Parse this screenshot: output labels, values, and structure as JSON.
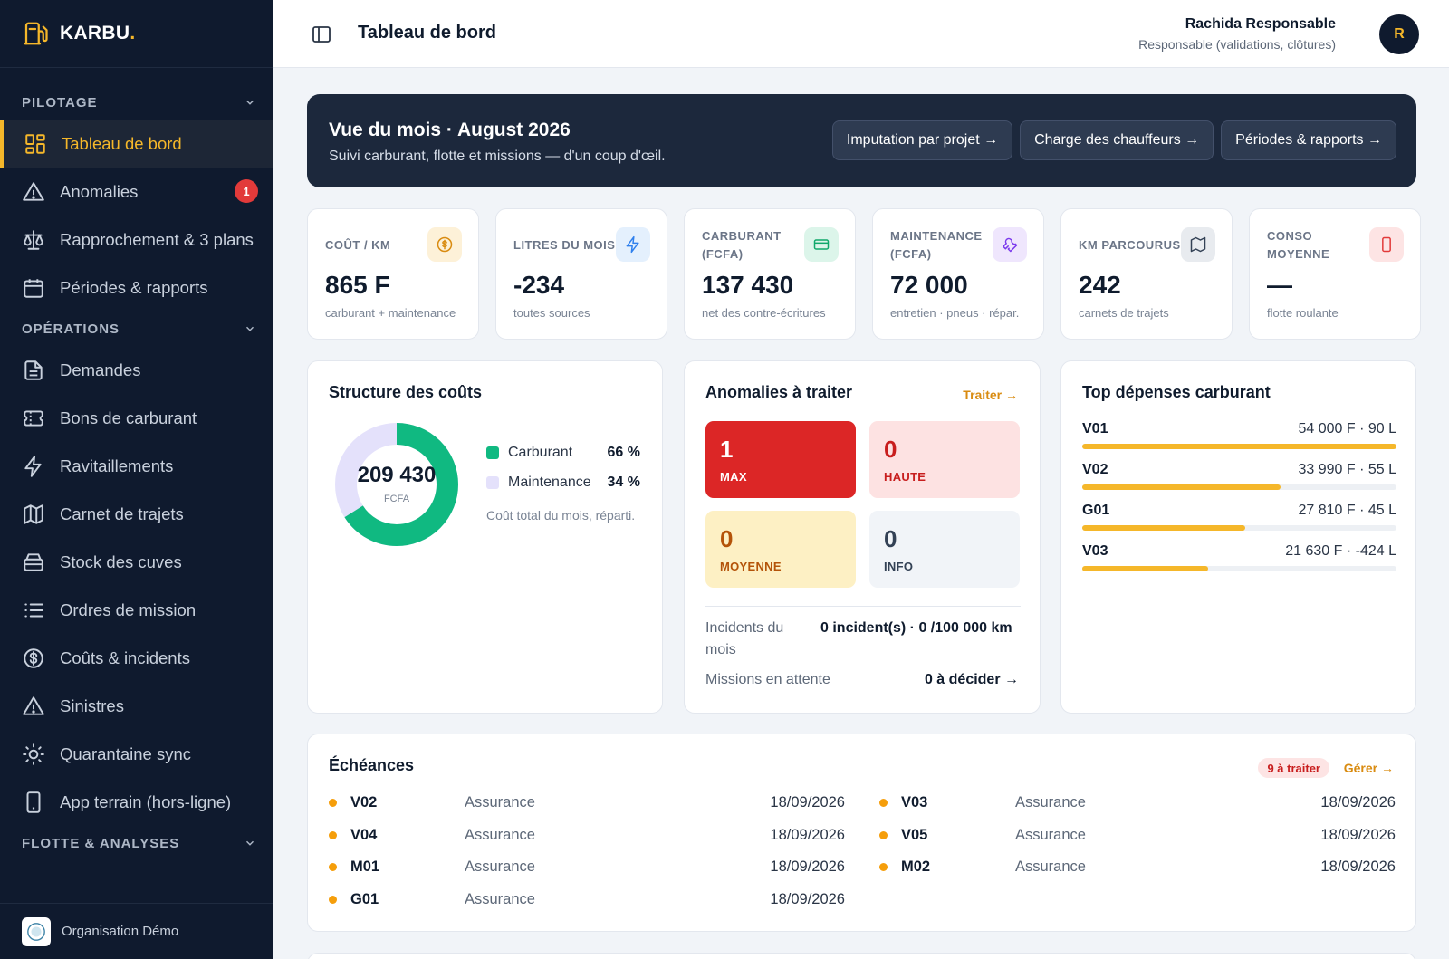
{
  "brand": {
    "name": "KARBU",
    "dot": "."
  },
  "sidebar": {
    "sections": [
      {
        "label": "PILOTAGE"
      },
      {
        "label": "OPÉRATIONS"
      },
      {
        "label": "FLOTTE & ANALYSES"
      }
    ],
    "pilotage": [
      {
        "label": "Tableau de bord",
        "icon": "dashboard-icon",
        "active": true
      },
      {
        "label": "Anomalies",
        "icon": "warning-icon",
        "badge": "1"
      },
      {
        "label": "Rapprochement & 3 plans",
        "icon": "scale-icon"
      },
      {
        "label": "Périodes & rapports",
        "icon": "calendar-icon"
      }
    ],
    "operations": [
      {
        "label": "Demandes",
        "icon": "document-icon"
      },
      {
        "label": "Bons de carburant",
        "icon": "ticket-icon"
      },
      {
        "label": "Ravitaillements",
        "icon": "bolt-icon"
      },
      {
        "label": "Carnet de trajets",
        "icon": "map-icon"
      },
      {
        "label": "Stock des cuves",
        "icon": "tank-icon"
      },
      {
        "label": "Ordres de mission",
        "icon": "list-icon"
      },
      {
        "label": "Coûts & incidents",
        "icon": "dollar-icon"
      },
      {
        "label": "Sinistres",
        "icon": "warning-icon"
      },
      {
        "label": "Quarantaine sync",
        "icon": "sun-icon"
      },
      {
        "label": "App terrain (hors-ligne)",
        "icon": "phone-icon"
      }
    ],
    "org": "Organisation Démo"
  },
  "header": {
    "title": "Tableau de bord",
    "user_name": "Rachida Responsable",
    "user_role": "Responsable (validations, clôtures)",
    "avatar": "R"
  },
  "banner": {
    "title": "Vue du mois · August 2026",
    "subtitle": "Suivi carburant, flotte et missions — d'un coup d'œil.",
    "buttons": [
      "Imputation par projet →",
      "Charge des chauffeurs →",
      "Périodes & rapports →"
    ]
  },
  "kpis": [
    {
      "label": "COÛT / KM",
      "value": "865 F",
      "sub": "carburant + maintenance",
      "icon": "coin-icon",
      "color": "#d98b10",
      "bg": "#fdf1d8"
    },
    {
      "label": "LITRES DU MOIS",
      "value": "-234",
      "sub": "toutes sources",
      "icon": "bolt-icon",
      "color": "#2f80ed",
      "bg": "#e4f0fd"
    },
    {
      "label": "CARBURANT (FCFA)",
      "value": "137 430",
      "sub": "net des contre-écritures",
      "icon": "card-icon",
      "color": "#10a86b",
      "bg": "#dcf5ea"
    },
    {
      "label": "MAINTENANCE (FCFA)",
      "value": "72 000",
      "sub": "entretien · pneus · répar.",
      "icon": "wrench-icon",
      "color": "#7c3aed",
      "bg": "#efe6fd"
    },
    {
      "label": "KM PARCOURUS",
      "value": "242",
      "sub": "carnets de trajets",
      "icon": "map-icon",
      "color": "#334155",
      "bg": "#e8ebef"
    },
    {
      "label": "CONSO MOYENNE",
      "value": "—",
      "sub": "flotte roulante",
      "icon": "phone-icon",
      "color": "#e23a3a",
      "bg": "#fde4e4"
    }
  ],
  "costs": {
    "title": "Structure des coûts",
    "total": "209 430",
    "unit": "FCFA",
    "note": "Coût total du mois, réparti.",
    "legend": [
      {
        "label": "Carburant",
        "pct": "66 %",
        "color": "#10b981"
      },
      {
        "label": "Maintenance",
        "pct": "34 %",
        "color": "#e4e1fb"
      }
    ]
  },
  "chart_data": {
    "type": "pie",
    "categories": [
      "Carburant",
      "Maintenance"
    ],
    "values": [
      66,
      34
    ]
  },
  "anomalies": {
    "title": "Anomalies à traiter",
    "link": "Traiter →",
    "levels": [
      {
        "count": "1",
        "label": "MAX",
        "bg": "#dc2626",
        "fg": "#ffffff"
      },
      {
        "count": "0",
        "label": "HAUTE",
        "bg": "#fde2e2",
        "fg": "#c81e1e"
      },
      {
        "count": "0",
        "label": "MOYENNE",
        "bg": "#fdf0c4",
        "fg": "#b45309"
      },
      {
        "count": "0",
        "label": "INFO",
        "bg": "#f1f4f8",
        "fg": "#334155"
      }
    ],
    "incidents_label": "Incidents du mois",
    "incidents_value": "0 incident(s) · 0 /100 000 km",
    "missions_label": "Missions en attente",
    "missions_value": "0 à décider →"
  },
  "top_spend": {
    "title": "Top dépenses carburant",
    "items": [
      {
        "code": "V01",
        "amount": "54 000 F · 90 L",
        "share": 1.0
      },
      {
        "code": "V02",
        "amount": "33 990 F · 55 L",
        "share": 0.63
      },
      {
        "code": "G01",
        "amount": "27 810 F · 45 L",
        "share": 0.52
      },
      {
        "code": "V03",
        "amount": "21 630 F · -424 L",
        "share": 0.4
      }
    ]
  },
  "deadlines": {
    "title": "Échéances",
    "badge": "9 à traiter",
    "link": "Gérer →",
    "left": [
      {
        "code": "V02",
        "type": "Assurance",
        "date": "18/09/2026"
      },
      {
        "code": "V04",
        "type": "Assurance",
        "date": "18/09/2026"
      },
      {
        "code": "M01",
        "type": "Assurance",
        "date": "18/09/2026"
      },
      {
        "code": "G01",
        "type": "Assurance",
        "date": "18/09/2026"
      }
    ],
    "right": [
      {
        "code": "V03",
        "type": "Assurance",
        "date": "18/09/2026"
      },
      {
        "code": "V05",
        "type": "Assurance",
        "date": "18/09/2026"
      },
      {
        "code": "M02",
        "type": "Assurance",
        "date": "18/09/2026"
      }
    ]
  }
}
